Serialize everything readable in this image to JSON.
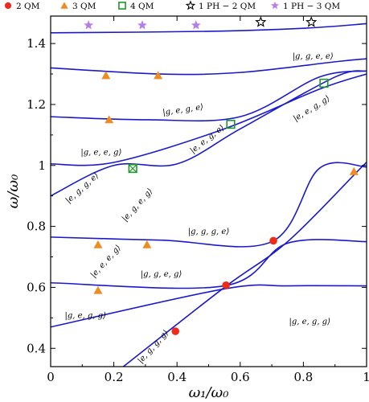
{
  "chart_data": {
    "type": "line",
    "xlabel": "ω₁/ω₀",
    "ylabel": "ω/ω₀",
    "xlim": [
      0,
      1
    ],
    "ylim": [
      0.34,
      1.49
    ],
    "xticks": [
      "0",
      "0.2",
      "0.4",
      "0.6",
      "0.8",
      "1"
    ],
    "yticks": [
      "0.4",
      "0.6",
      "0.8",
      "1",
      "1.2",
      "1.4"
    ],
    "line_color": "#1a1acc",
    "legend": [
      {
        "label": "2 QM",
        "marker": "circle",
        "color": "#ee2a1b"
      },
      {
        "label": "3 QM",
        "marker": "triangle",
        "color": "#ee8c22"
      },
      {
        "label": "4 QM",
        "marker": "square-open",
        "color": "#1a9a2a"
      },
      {
        "label": "1 PH − 2 QM",
        "marker": "star-open",
        "color": "#000000"
      },
      {
        "label": "1 PH − 3 QM",
        "marker": "star",
        "color": "#b57ee8"
      }
    ],
    "series": [
      {
        "values": [
          [
            0,
            0.47
          ],
          [
            0.55,
            0.595
          ],
          [
            0.75,
            0.605
          ],
          [
            1,
            0.605
          ]
        ]
      },
      {
        "values": [
          [
            0,
            0.615
          ],
          [
            0.55,
            0.605
          ],
          [
            0.75,
            0.745
          ],
          [
            1,
            0.75
          ]
        ]
      },
      {
        "values": [
          [
            0,
            0.765
          ],
          [
            0.35,
            0.755
          ],
          [
            0.7,
            0.75
          ],
          [
            0.85,
            0.99
          ],
          [
            1,
            0.995
          ]
        ]
      },
      {
        "values": [
          [
            0.23,
            0.34
          ],
          [
            0.55,
            0.6
          ],
          [
            0.75,
            0.75
          ],
          [
            0.98,
            0.99
          ],
          [
            1,
            1.01
          ]
        ]
      },
      {
        "values": [
          [
            0,
            0.9
          ],
          [
            0.2,
            1.0
          ],
          [
            0.4,
            1.005
          ],
          [
            0.6,
            1.12
          ],
          [
            0.9,
            1.29
          ],
          [
            1,
            1.31
          ]
        ]
      },
      {
        "values": [
          [
            0,
            1.005
          ],
          [
            0.2,
            1.01
          ],
          [
            0.55,
            1.12
          ],
          [
            0.85,
            1.25
          ],
          [
            1,
            1.3
          ]
        ]
      },
      {
        "values": [
          [
            0,
            1.16
          ],
          [
            0.3,
            1.15
          ],
          [
            0.6,
            1.16
          ],
          [
            0.85,
            1.29
          ],
          [
            1,
            1.31
          ]
        ]
      },
      {
        "values": [
          [
            0,
            1.32
          ],
          [
            0.35,
            1.3
          ],
          [
            0.6,
            1.305
          ],
          [
            0.9,
            1.34
          ],
          [
            1,
            1.35
          ]
        ]
      },
      {
        "values": [
          [
            0,
            1.435
          ],
          [
            0.5,
            1.44
          ],
          [
            0.8,
            1.45
          ],
          [
            1,
            1.465
          ]
        ]
      }
    ],
    "markers": [
      {
        "type": "circle",
        "x": 0.395,
        "y": 0.456
      },
      {
        "type": "circle",
        "x": 0.555,
        "y": 0.607
      },
      {
        "type": "circle",
        "x": 0.705,
        "y": 0.753
      },
      {
        "type": "triangle",
        "x": 0.15,
        "y": 0.59
      },
      {
        "type": "triangle",
        "x": 0.15,
        "y": 0.74
      },
      {
        "type": "triangle",
        "x": 0.305,
        "y": 0.74
      },
      {
        "type": "triangle",
        "x": 0.185,
        "y": 1.15
      },
      {
        "type": "triangle",
        "x": 0.175,
        "y": 1.295
      },
      {
        "type": "triangle",
        "x": 0.34,
        "y": 1.295
      },
      {
        "type": "triangle",
        "x": 0.96,
        "y": 0.98
      },
      {
        "type": "square-open",
        "x": 0.26,
        "y": 0.99
      },
      {
        "type": "square-open",
        "x": 0.57,
        "y": 1.135
      },
      {
        "type": "square-open",
        "x": 0.865,
        "y": 1.27
      },
      {
        "type": "star-open",
        "x": 0.665,
        "y": 1.47
      },
      {
        "type": "star-open",
        "x": 0.825,
        "y": 1.47
      },
      {
        "type": "star",
        "x": 0.12,
        "y": 1.46
      },
      {
        "type": "star",
        "x": 0.29,
        "y": 1.46
      },
      {
        "type": "star",
        "x": 0.46,
        "y": 1.46
      }
    ],
    "annotations": [
      {
        "text": "|g, g, e, e⟩",
        "x": 0.83,
        "y": 1.35,
        "angle": 0
      },
      {
        "text": "|g, e, g, e⟩",
        "x": 0.42,
        "y": 1.175,
        "angle": -8
      },
      {
        "text": "|e, e, g, g⟩",
        "x": 0.83,
        "y": 1.18,
        "angle": -32
      },
      {
        "text": "|e, e, g, e⟩",
        "x": 0.5,
        "y": 1.08,
        "angle": -38
      },
      {
        "text": "|g, e, e, g⟩",
        "x": 0.16,
        "y": 1.035,
        "angle": 0
      },
      {
        "text": "|e, g, g, e⟩",
        "x": 0.105,
        "y": 0.92,
        "angle": -42
      },
      {
        "text": "|e, g, e, g⟩",
        "x": 0.28,
        "y": 0.865,
        "angle": -48
      },
      {
        "text": "|g, g, g, e⟩",
        "x": 0.5,
        "y": 0.775,
        "angle": 0
      },
      {
        "text": "|e, e, e, g⟩",
        "x": 0.18,
        "y": 0.68,
        "angle": -48
      },
      {
        "text": "|g, g, e, g⟩",
        "x": 0.35,
        "y": 0.635,
        "angle": 0
      },
      {
        "text": "|g, e, g, g⟩",
        "x": 0.11,
        "y": 0.5,
        "angle": 0
      },
      {
        "text": "|g, e, g, g⟩",
        "x": 0.82,
        "y": 0.48,
        "angle": 0
      },
      {
        "text": "|e, g, g, g⟩",
        "x": 0.33,
        "y": 0.4,
        "angle": -48
      }
    ]
  }
}
